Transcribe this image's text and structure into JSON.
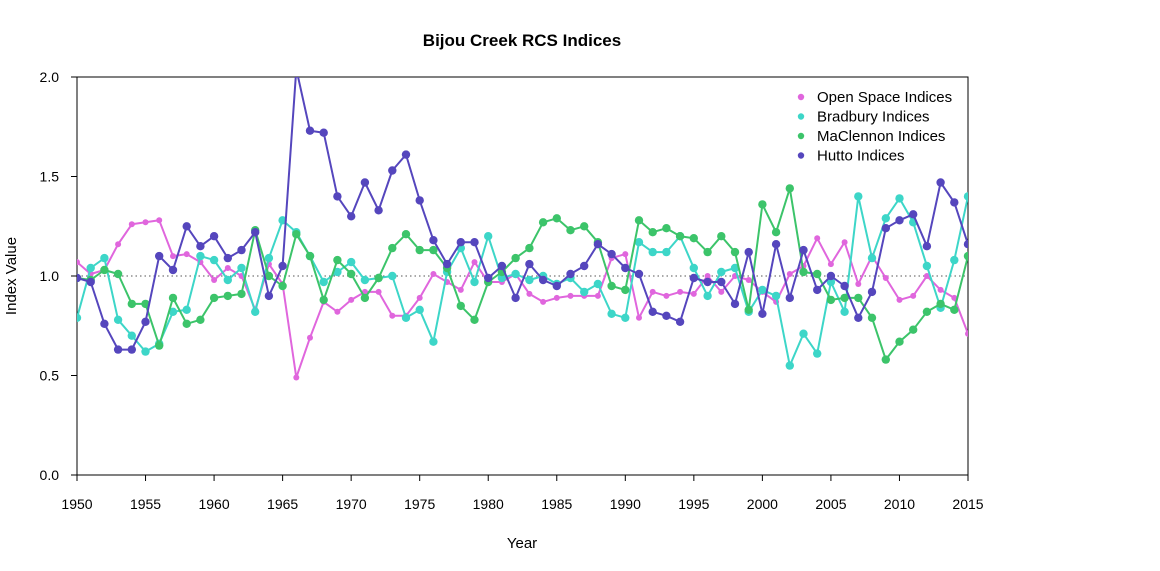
{
  "chart_data": {
    "type": "line",
    "title": "Bijou Creek RCS Indices",
    "xlabel": "Year",
    "ylabel": "Index Value",
    "xlim": [
      1950,
      2015
    ],
    "ylim": [
      0,
      2.0
    ],
    "xticks": [
      "1950",
      "1955",
      "1960",
      "1965",
      "1970",
      "1975",
      "1980",
      "1985",
      "1990",
      "1995",
      "2000",
      "2005",
      "2010",
      "2015"
    ],
    "yticks": [
      "0.0",
      "0.5",
      "1.0",
      "1.5",
      "2.0"
    ],
    "reference_line": 1.0,
    "legend_position": "top-right",
    "series": [
      {
        "name": "Open Space Indices",
        "color": "#e066dd",
        "start_year": 1950,
        "values": [
          1.07,
          1.01,
          1.03,
          1.16,
          1.26,
          1.27,
          1.28,
          1.1,
          1.11,
          1.07,
          0.98,
          1.04,
          1.0,
          0.83,
          1.06,
          0.96,
          0.49,
          0.69,
          0.87,
          0.82,
          0.88,
          0.92,
          0.92,
          0.8,
          0.8,
          0.89,
          1.01,
          0.97,
          0.93,
          1.07,
          0.97,
          0.97,
          1.01,
          0.91,
          0.87,
          0.89,
          0.9,
          0.9,
          0.9,
          1.09,
          1.11,
          0.79,
          0.92,
          0.9,
          0.92,
          0.91,
          1.0,
          0.92,
          1.0,
          0.98,
          0.92,
          0.87,
          1.01,
          1.05,
          1.19,
          1.06,
          1.17,
          0.96,
          1.1,
          0.99,
          0.88,
          0.9,
          1.0,
          0.93,
          0.89,
          0.71
        ],
        "marker_size": "small"
      },
      {
        "name": "Bradbury Indices",
        "color": "#3dd6c8",
        "start_year": 1950,
        "values": [
          0.79,
          1.04,
          1.09,
          0.78,
          0.7,
          0.62,
          0.66,
          0.82,
          0.83,
          1.1,
          1.08,
          0.98,
          1.04,
          0.82,
          1.09,
          1.28,
          1.22,
          1.1,
          0.97,
          1.02,
          1.07,
          0.98,
          0.99,
          1.0,
          0.79,
          0.83,
          0.67,
          1.02,
          1.14,
          0.97,
          1.2,
          0.99,
          1.01,
          0.98,
          1.0,
          0.96,
          0.99,
          0.92,
          0.96,
          0.81,
          0.79,
          1.17,
          1.12,
          1.12,
          1.2,
          1.04,
          0.9,
          1.02,
          1.04,
          0.82,
          0.93,
          0.9,
          0.55,
          0.71,
          0.61,
          0.97,
          0.82,
          1.4,
          1.09,
          1.29,
          1.39,
          1.27,
          1.05,
          0.84,
          1.08,
          1.4
        ],
        "marker_size": "large"
      },
      {
        "name": "MaClennon Indices",
        "color": "#3cc46a",
        "start_year": 1950,
        "values": [
          0.99,
          0.98,
          1.03,
          1.01,
          0.86,
          0.86,
          0.65,
          0.89,
          0.76,
          0.78,
          0.89,
          0.9,
          0.91,
          1.23,
          1.0,
          0.95,
          1.21,
          1.1,
          0.88,
          1.08,
          1.01,
          0.89,
          0.99,
          1.14,
          1.21,
          1.13,
          1.13,
          1.04,
          0.85,
          0.78,
          0.97,
          1.02,
          1.09,
          1.14,
          1.27,
          1.29,
          1.23,
          1.25,
          1.17,
          0.95,
          0.93,
          1.28,
          1.22,
          1.24,
          1.2,
          1.19,
          1.12,
          1.2,
          1.12,
          0.83,
          1.36,
          1.22,
          1.44,
          1.02,
          1.01,
          0.88,
          0.89,
          0.89,
          0.79,
          0.58,
          0.67,
          0.73,
          0.82,
          0.86,
          0.83,
          1.1
        ],
        "marker_size": "large"
      },
      {
        "name": "Hutto Indices",
        "color": "#5546bd",
        "start_year": 1950,
        "values": [
          0.99,
          0.97,
          0.76,
          0.63,
          0.63,
          0.77,
          1.1,
          1.03,
          1.25,
          1.15,
          1.2,
          1.09,
          1.13,
          1.22,
          0.9,
          1.05,
          2.04,
          1.73,
          1.72,
          1.4,
          1.3,
          1.47,
          1.33,
          1.53,
          1.61,
          1.38,
          1.18,
          1.06,
          1.17,
          1.17,
          0.99,
          1.05,
          0.89,
          1.06,
          0.98,
          0.95,
          1.01,
          1.05,
          1.16,
          1.11,
          1.04,
          1.01,
          0.82,
          0.8,
          0.77,
          0.99,
          0.97,
          0.97,
          0.86,
          1.12,
          0.81,
          1.16,
          0.89,
          1.13,
          0.93,
          1.0,
          0.95,
          0.79,
          0.92,
          1.24,
          1.28,
          1.31,
          1.15,
          1.47,
          1.37,
          1.16
        ],
        "marker_size": "large"
      }
    ]
  }
}
